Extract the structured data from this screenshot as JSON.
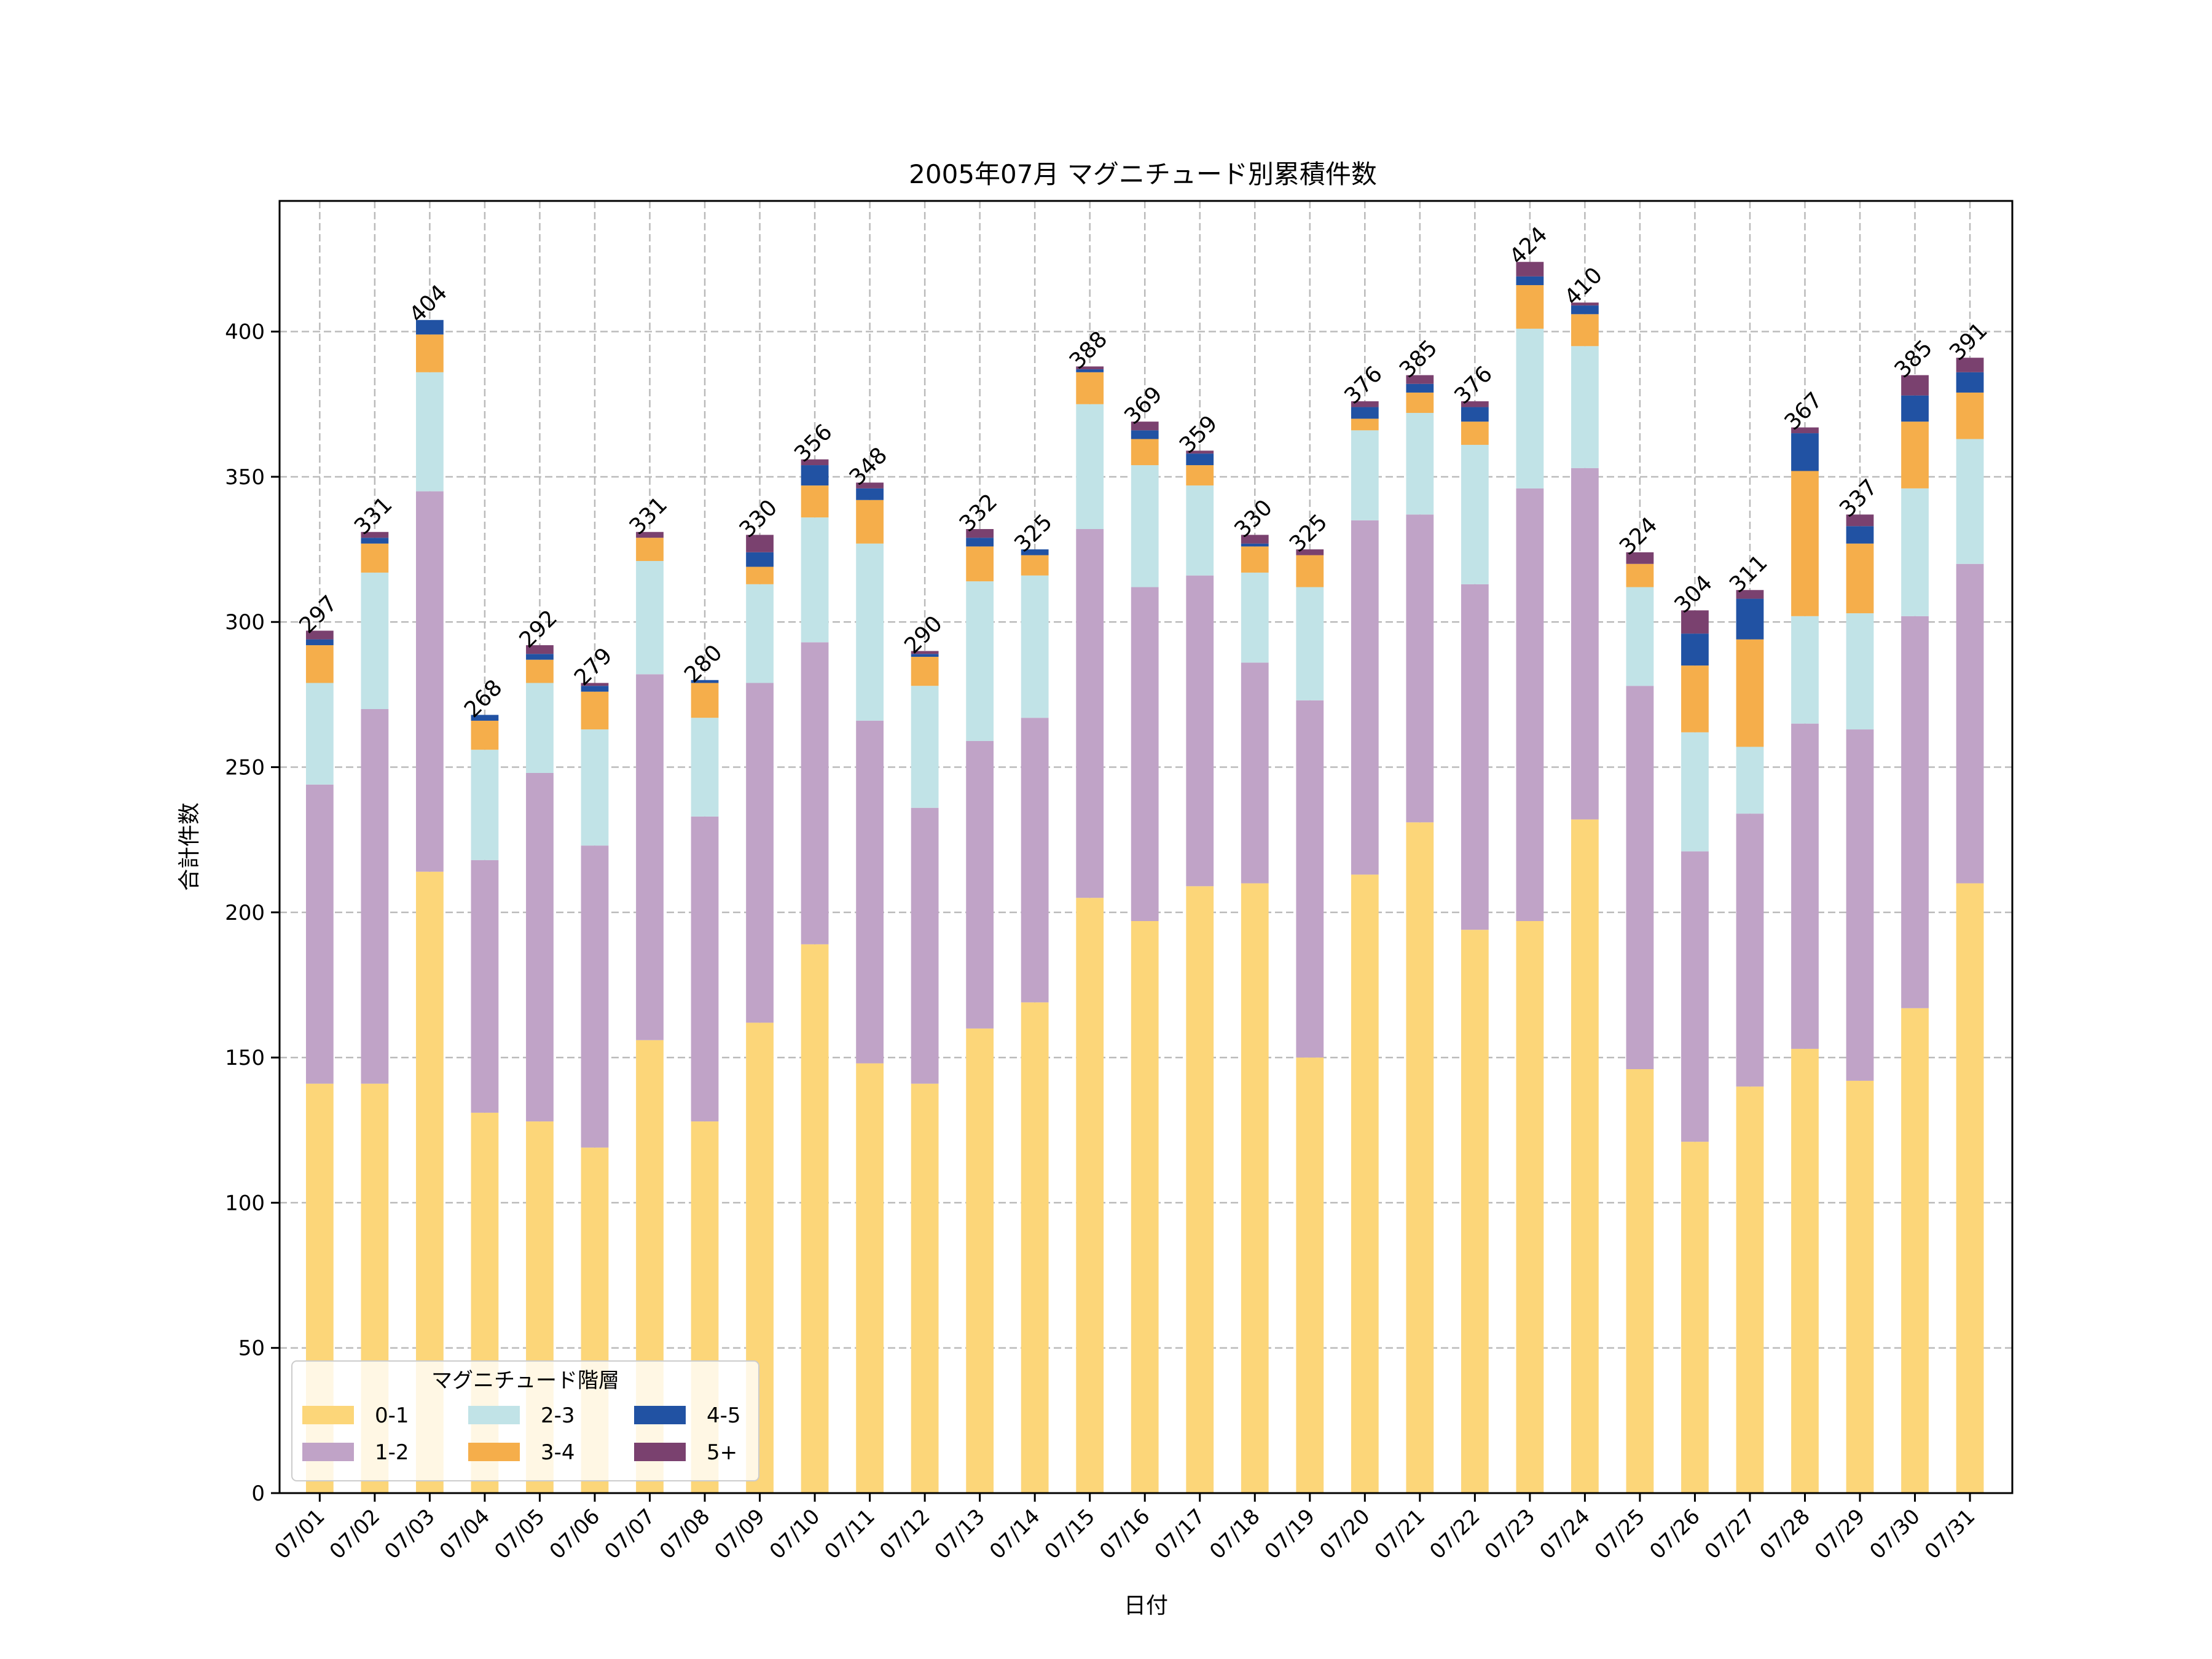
{
  "chart_data": {
    "type": "bar",
    "stacked": true,
    "title": "2005年07月 マグニチュード別累積件数",
    "xlabel": "日付",
    "ylabel": "合計件数",
    "ylim": [
      0,
      445
    ],
    "yticks": [
      0,
      50,
      100,
      150,
      200,
      250,
      300,
      350,
      400
    ],
    "grid": true,
    "legend": {
      "title": "マグニチュード階層",
      "placement": "lower-left",
      "columns": 3
    },
    "categories": [
      "07/01",
      "07/02",
      "07/03",
      "07/04",
      "07/05",
      "07/06",
      "07/07",
      "07/08",
      "07/09",
      "07/10",
      "07/11",
      "07/12",
      "07/13",
      "07/14",
      "07/15",
      "07/16",
      "07/17",
      "07/18",
      "07/19",
      "07/20",
      "07/21",
      "07/22",
      "07/23",
      "07/24",
      "07/25",
      "07/26",
      "07/27",
      "07/28",
      "07/29",
      "07/30",
      "07/31"
    ],
    "totals": [
      297,
      331,
      404,
      268,
      292,
      279,
      331,
      280,
      330,
      356,
      348,
      290,
      332,
      325,
      388,
      369,
      359,
      330,
      325,
      376,
      385,
      376,
      424,
      410,
      324,
      304,
      311,
      367,
      337,
      385,
      391
    ],
    "series": [
      {
        "name": "0-1",
        "color": "#FCD679",
        "values": [
          141,
          141,
          214,
          131,
          128,
          119,
          156,
          128,
          162,
          189,
          148,
          141,
          160,
          169,
          205,
          197,
          209,
          210,
          150,
          213,
          231,
          194,
          197,
          232,
          146,
          121,
          140,
          153,
          142,
          167,
          210
        ]
      },
      {
        "name": "1-2",
        "color": "#C0A3C7",
        "values": [
          103,
          129,
          131,
          87,
          120,
          104,
          126,
          105,
          117,
          104,
          118,
          95,
          99,
          98,
          127,
          115,
          107,
          76,
          123,
          122,
          106,
          119,
          149,
          121,
          132,
          100,
          94,
          112,
          121,
          135,
          110
        ]
      },
      {
        "name": "2-3",
        "color": "#C1E3E7",
        "values": [
          35,
          47,
          41,
          38,
          31,
          40,
          39,
          34,
          34,
          43,
          61,
          42,
          55,
          49,
          43,
          42,
          31,
          31,
          39,
          31,
          35,
          48,
          55,
          42,
          34,
          41,
          23,
          37,
          40,
          44,
          43
        ]
      },
      {
        "name": "3-4",
        "color": "#F5AE4B",
        "values": [
          13,
          10,
          13,
          10,
          8,
          13,
          8,
          12,
          6,
          11,
          15,
          10,
          12,
          7,
          11,
          9,
          7,
          9,
          11,
          4,
          7,
          8,
          15,
          11,
          8,
          23,
          37,
          50,
          24,
          23,
          16
        ]
      },
      {
        "name": "4-5",
        "color": "#2152A3",
        "values": [
          2,
          2,
          5,
          2,
          2,
          2,
          0,
          1,
          5,
          7,
          4,
          1,
          3,
          2,
          1,
          3,
          4,
          1,
          0,
          4,
          3,
          5,
          3,
          3,
          0,
          11,
          14,
          13,
          6,
          9,
          7
        ]
      },
      {
        "name": "5+",
        "color": "#7A416F",
        "values": [
          3,
          2,
          0,
          0,
          3,
          1,
          2,
          0,
          6,
          2,
          2,
          1,
          3,
          0,
          1,
          3,
          1,
          3,
          2,
          2,
          3,
          2,
          5,
          1,
          4,
          8,
          3,
          2,
          4,
          7,
          5
        ]
      }
    ]
  }
}
